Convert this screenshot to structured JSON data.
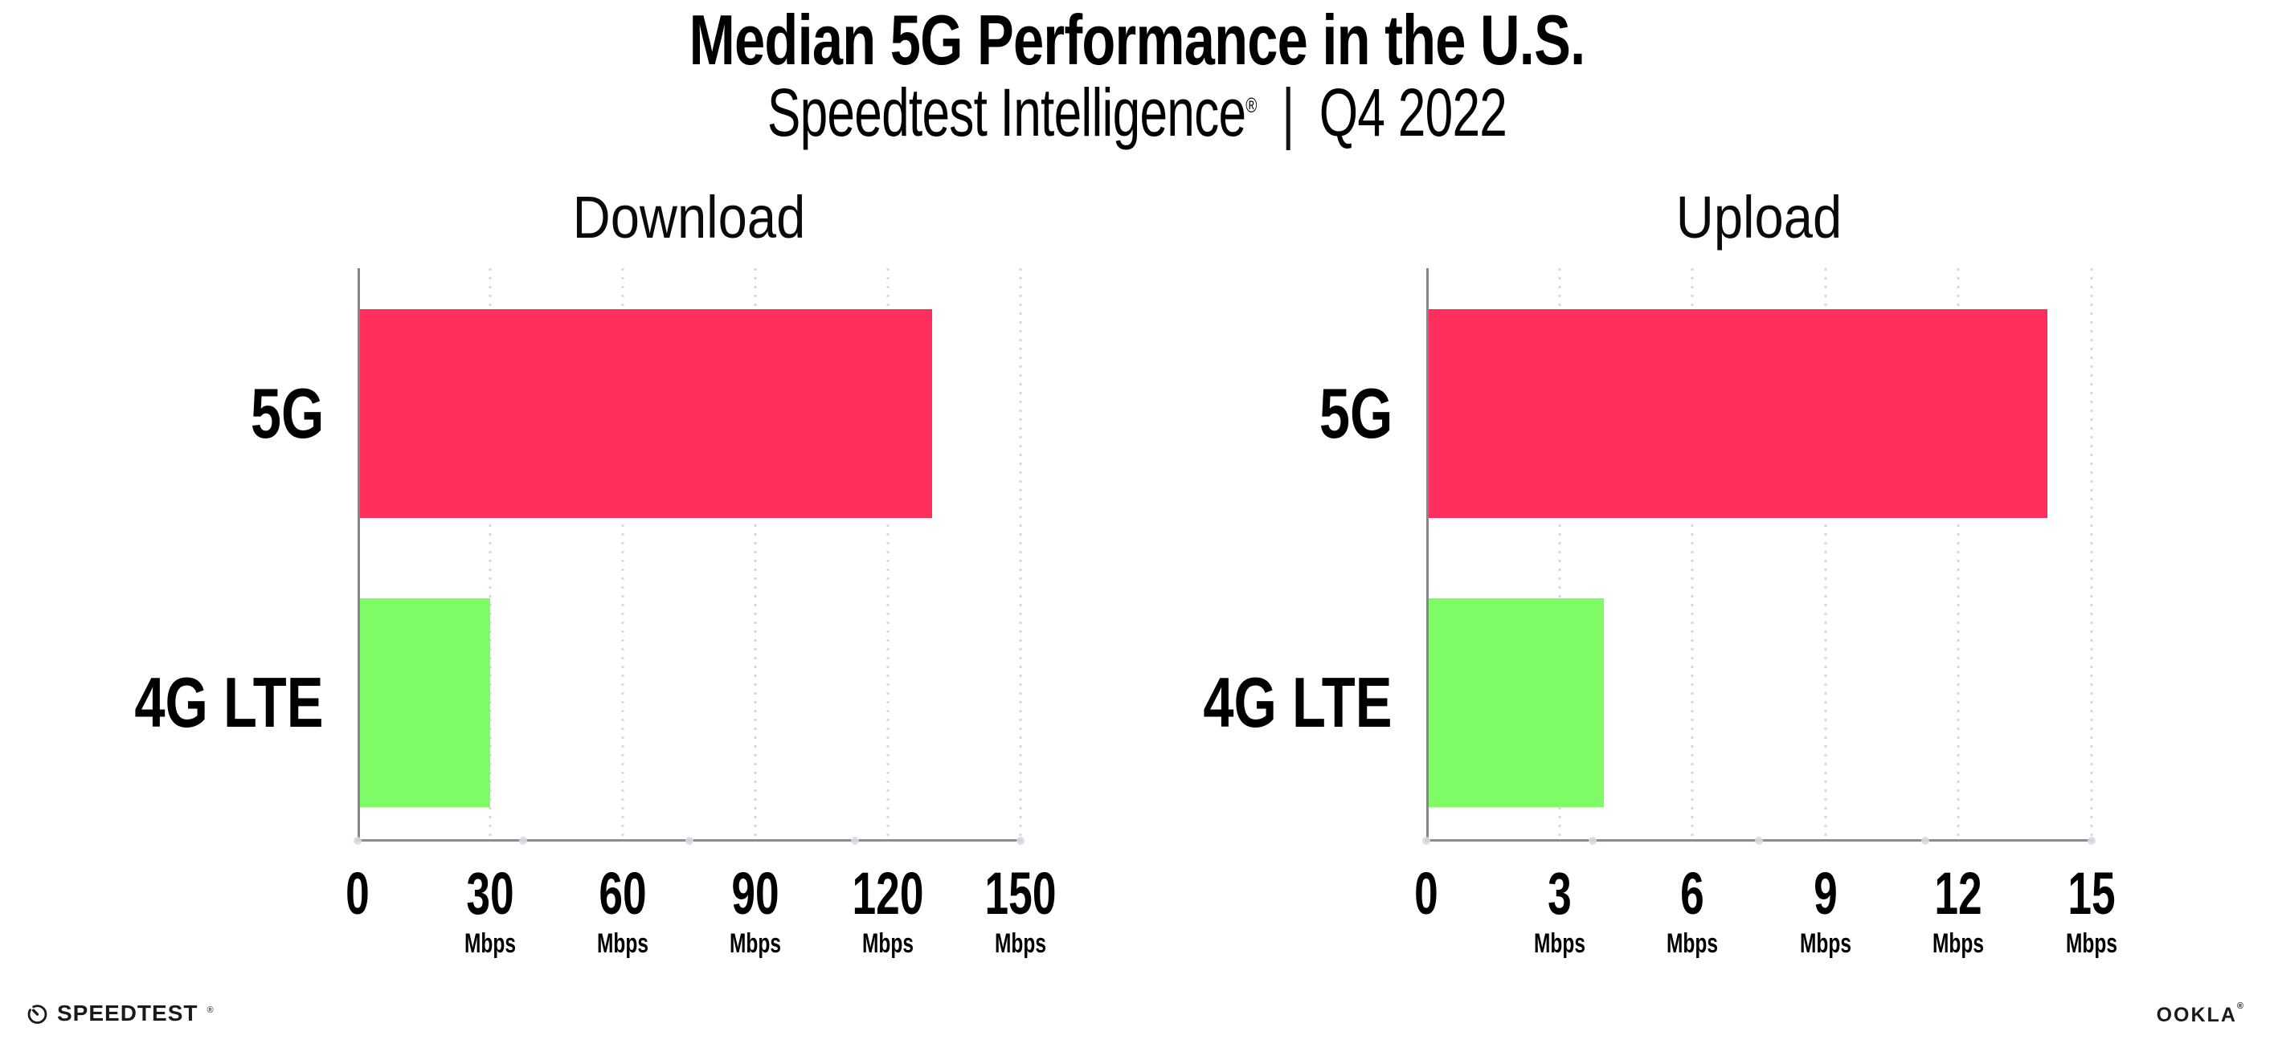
{
  "header": {
    "title": "Median 5G Performance in the U.S.",
    "subtitle_brand": "Speedtest Intelligence",
    "subtitle_reg": "®",
    "subtitle_separator": "|",
    "subtitle_period": "Q4 2022"
  },
  "footer": {
    "speedtest_label": "SPEEDTEST",
    "speedtest_mark": "®",
    "speedtest_icon": "gauge-icon",
    "ookla_label": "OOKLA",
    "ookla_mark": "®"
  },
  "colors": {
    "bar_5g": "#FF2E5C",
    "bar_4g_lte": "#7FFB66",
    "axis": "#8c8c92",
    "gridline_dots": "#d7d7e1",
    "axis_tick_dots": "#d9d9e3",
    "text": "#000000",
    "background": "#ffffff"
  },
  "chart_data": [
    {
      "type": "bar",
      "orientation": "horizontal",
      "title": "Download",
      "categories": [
        "5G",
        "4G LTE"
      ],
      "values": [
        130,
        30
      ],
      "unit": "Mbps",
      "xlim": [
        0,
        150
      ],
      "xticks": [
        0,
        30,
        60,
        90,
        120,
        150
      ],
      "grid": "dotted-vertical",
      "legend": "none",
      "bar_colors": [
        "#FF2E5C",
        "#7FFB66"
      ]
    },
    {
      "type": "bar",
      "orientation": "horizontal",
      "title": "Upload",
      "categories": [
        "5G",
        "4G LTE"
      ],
      "values": [
        14,
        4
      ],
      "unit": "Mbps",
      "xlim": [
        0,
        15
      ],
      "xticks": [
        0,
        3,
        6,
        9,
        12,
        15
      ],
      "grid": "dotted-vertical",
      "legend": "none",
      "bar_colors": [
        "#FF2E5C",
        "#7FFB66"
      ]
    }
  ]
}
